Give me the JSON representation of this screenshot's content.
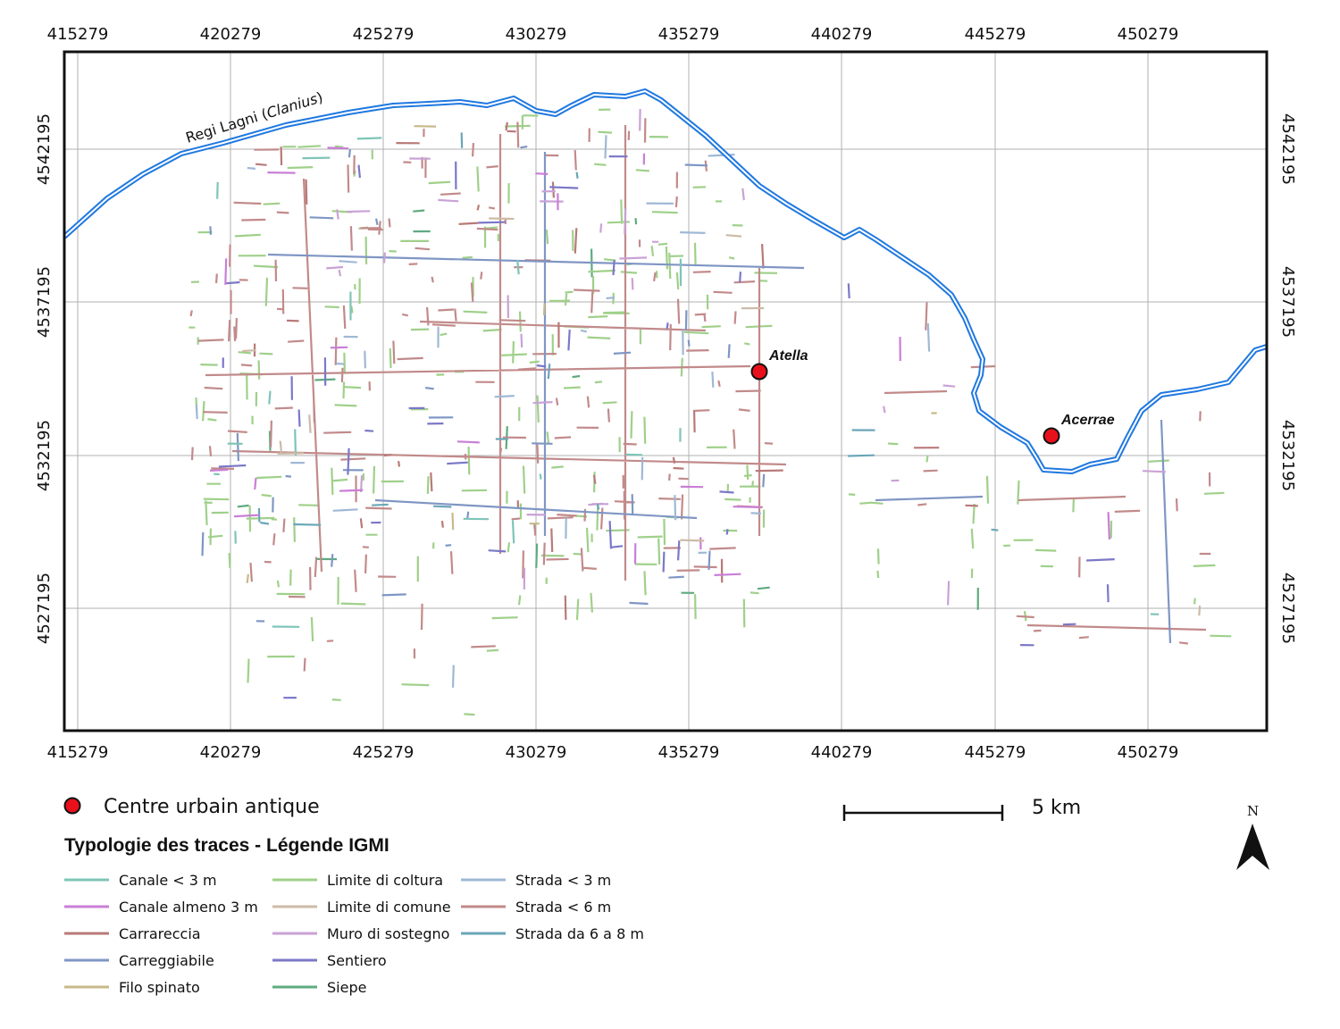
{
  "map": {
    "x_ticks": [
      "415279",
      "420279",
      "425279",
      "430279",
      "435279",
      "440279",
      "445279",
      "450279"
    ],
    "y_ticks": [
      "4542195",
      "4537195",
      "4532195",
      "4527195"
    ],
    "river_label_main": "Regi Lagni (",
    "river_label_italic": "Clanius",
    "river_label_end": ")",
    "places": [
      {
        "name": "Atella"
      },
      {
        "name": "Acerrae"
      }
    ],
    "colors": {
      "river": "#1f78e0",
      "urban_centre": "#e8101a"
    }
  },
  "scale_bar": {
    "label": "5 km"
  },
  "north_arrow": {
    "label": "N"
  },
  "legend": {
    "urban_centre_label": "Centre urbain antique",
    "title": "Typologie des traces - Légende IGMI",
    "items": [
      {
        "label": "Canale < 3 m",
        "color": "#7fc4b8"
      },
      {
        "label": "Canale almeno 3 m",
        "color": "#c97fd6"
      },
      {
        "label": "Carrareccia",
        "color": "#b87a78"
      },
      {
        "label": "Carreggiabile",
        "color": "#7f96c4"
      },
      {
        "label": "Filo spinato",
        "color": "#c8b98a"
      },
      {
        "label": "Limite di coltura",
        "color": "#9fd08a"
      },
      {
        "label": "Limite di comune",
        "color": "#cdbba7"
      },
      {
        "label": "Muro di sostegno",
        "color": "#c9a2d6"
      },
      {
        "label": "Sentiero",
        "color": "#7b78c8"
      },
      {
        "label": "Siepe",
        "color": "#5faa7f"
      },
      {
        "label": "Strada < 3 m",
        "color": "#9fb8d6"
      },
      {
        "label": "Strada < 6 m",
        "color": "#c28a8a"
      },
      {
        "label": "Strada da 6 a 8 m",
        "color": "#6aa6b8"
      }
    ]
  }
}
